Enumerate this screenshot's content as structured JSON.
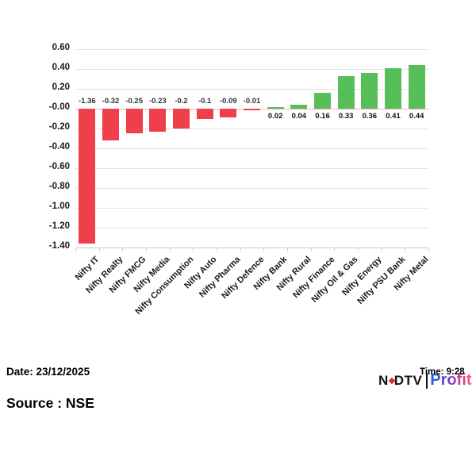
{
  "chart_data": {
    "type": "bar",
    "title": "",
    "xlabel": "",
    "ylabel": "",
    "categories": [
      "Nifty IT",
      "Nifty Realty",
      "Nifty FMCG",
      "Nifty Media",
      "Nifty Consumption",
      "Nifty Auto",
      "Nifty Pharma",
      "Nifty Defence",
      "Nifty Bank",
      "Nifty Rural",
      "Nifty Finance",
      "Nifty Oil & Gas",
      "Nifty Energy",
      "Nifty PSU Bank",
      "Nifty Metal"
    ],
    "values": [
      -1.36,
      -0.32,
      -0.25,
      -0.23,
      -0.2,
      -0.1,
      -0.09,
      -0.01,
      0.02,
      0.04,
      0.16,
      0.33,
      0.36,
      0.41,
      0.44
    ],
    "bar_labels": [
      "-1.36",
      "-0.32",
      "-0.25",
      "-0.23",
      "-0.2",
      "-0.1",
      "-0.09",
      "-0.01",
      "0.02",
      "0.04",
      "0.16",
      "0.33",
      "0.36",
      "0.41",
      "0.44"
    ],
    "y_ticks": [
      "0.60",
      "0.40",
      "0.20",
      "-0.00",
      "-0.20",
      "-0.40",
      "-0.60",
      "-0.80",
      "-1.00",
      "-1.20",
      "-1.40"
    ],
    "ylim": [
      -1.4,
      0.6
    ],
    "grid": true,
    "legend": "none",
    "colors": {
      "negative": "#ee3f4a",
      "positive": "#57bf57",
      "grid": "#e3e3e3",
      "zero_line": "#f2aeae",
      "axis_line": "#c6c6c6",
      "neg_label": "#333333",
      "pos_label": "#111111"
    }
  },
  "footer": {
    "date_label": "Date: 23/12/2025",
    "source_label": "Source : NSE",
    "time_label": "Time: 9:28",
    "logo": {
      "ndtv_n": "N",
      "ndtv_dtv": "DTV",
      "profit": "Profit"
    }
  }
}
